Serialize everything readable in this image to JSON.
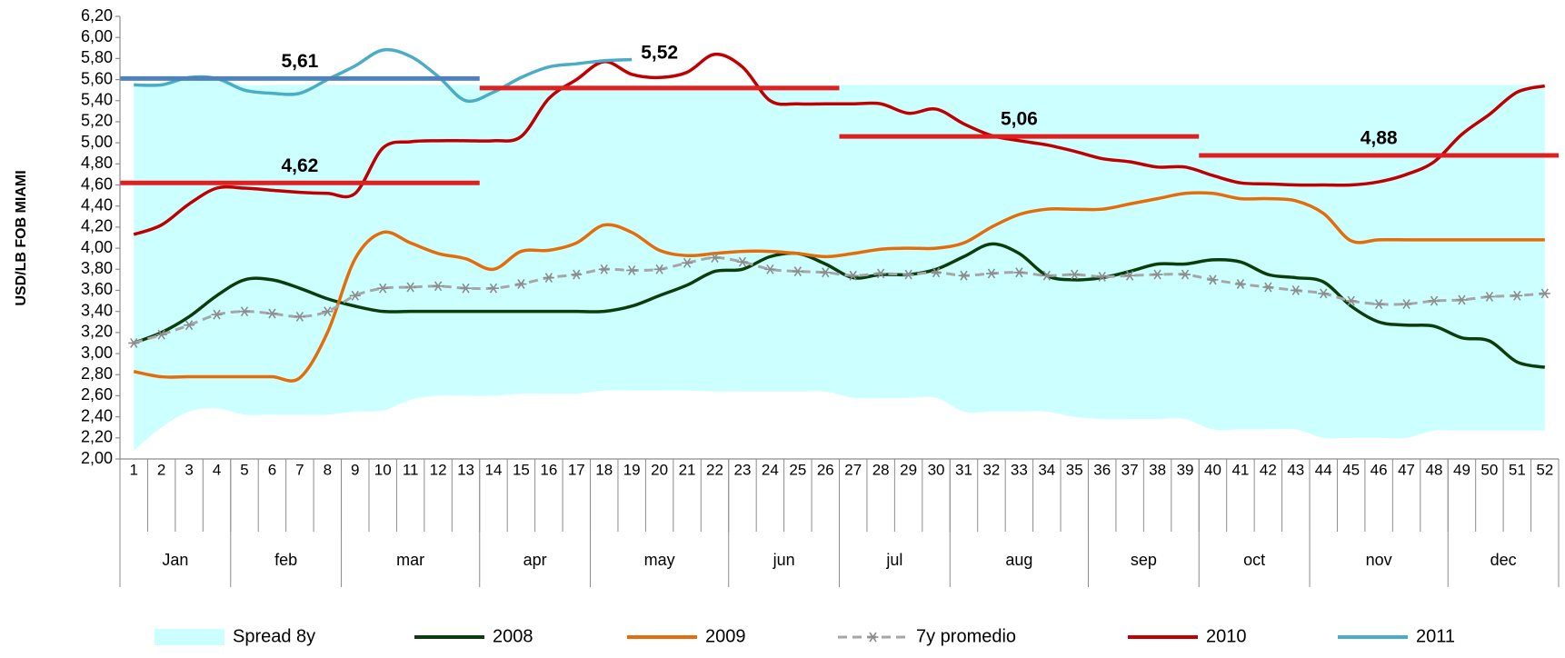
{
  "chart_data": {
    "type": "line",
    "y_axis_label": "USD/LB FOB MIAMI",
    "categories": [
      1,
      2,
      3,
      4,
      5,
      6,
      7,
      8,
      9,
      10,
      11,
      12,
      13,
      14,
      15,
      16,
      17,
      18,
      19,
      20,
      21,
      22,
      23,
      24,
      25,
      26,
      27,
      28,
      29,
      30,
      31,
      32,
      33,
      34,
      35,
      36,
      37,
      38,
      39,
      40,
      41,
      42,
      43,
      44,
      45,
      46,
      47,
      48,
      49,
      50,
      51,
      52
    ],
    "months": [
      {
        "label": "Jan",
        "weeks": [
          1,
          4
        ]
      },
      {
        "label": "feb",
        "weeks": [
          5,
          8
        ]
      },
      {
        "label": "mar",
        "weeks": [
          9,
          13
        ]
      },
      {
        "label": "apr",
        "weeks": [
          14,
          17
        ]
      },
      {
        "label": "may",
        "weeks": [
          18,
          22
        ]
      },
      {
        "label": "jun",
        "weeks": [
          23,
          26
        ]
      },
      {
        "label": "jul",
        "weeks": [
          27,
          30
        ]
      },
      {
        "label": "aug",
        "weeks": [
          31,
          35
        ]
      },
      {
        "label": "sep",
        "weeks": [
          36,
          39
        ]
      },
      {
        "label": "oct",
        "weeks": [
          40,
          43
        ]
      },
      {
        "label": "nov",
        "weeks": [
          44,
          48
        ]
      },
      {
        "label": "dec",
        "weeks": [
          49,
          52
        ]
      }
    ],
    "series": [
      {
        "name": "Spread 8y",
        "style": "range",
        "color": "#ccffff",
        "values": [
          5.55,
          5.55,
          5.6,
          5.6,
          5.55,
          5.55,
          5.55,
          5.55,
          5.55,
          5.55,
          5.55,
          5.55,
          5.55,
          5.55,
          5.55,
          5.55,
          5.55,
          5.55,
          5.55,
          5.55,
          5.55,
          5.55,
          5.55,
          5.55,
          5.55,
          5.55,
          5.55,
          5.55,
          5.55,
          5.55,
          5.55,
          5.55,
          5.55,
          5.55,
          5.55,
          5.55,
          5.55,
          5.55,
          5.55,
          5.55,
          5.55,
          5.55,
          5.55,
          5.55,
          5.55,
          5.55,
          5.55,
          5.55,
          5.55,
          5.55,
          5.55,
          5.55
        ],
        "lower": [
          2.08,
          2.3,
          2.45,
          2.48,
          2.42,
          2.42,
          2.42,
          2.42,
          2.45,
          2.46,
          2.56,
          2.6,
          2.6,
          2.6,
          2.62,
          2.62,
          2.62,
          2.65,
          2.65,
          2.65,
          2.65,
          2.64,
          2.64,
          2.64,
          2.64,
          2.64,
          2.58,
          2.58,
          2.58,
          2.58,
          2.45,
          2.45,
          2.45,
          2.45,
          2.4,
          2.38,
          2.38,
          2.38,
          2.38,
          2.28,
          2.28,
          2.28,
          2.28,
          2.2,
          2.2,
          2.2,
          2.2,
          2.27,
          2.27,
          2.27,
          2.27,
          2.27
        ]
      },
      {
        "name": "2008",
        "style": "line",
        "color": "#0b3d0b",
        "values": [
          3.1,
          3.2,
          3.35,
          3.55,
          3.7,
          3.7,
          3.62,
          3.52,
          3.45,
          3.4,
          3.4,
          3.4,
          3.4,
          3.4,
          3.4,
          3.4,
          3.4,
          3.4,
          3.45,
          3.55,
          3.65,
          3.78,
          3.8,
          3.92,
          3.95,
          3.85,
          3.72,
          3.75,
          3.75,
          3.8,
          3.92,
          4.04,
          3.95,
          3.74,
          3.7,
          3.72,
          3.78,
          3.85,
          3.85,
          3.89,
          3.87,
          3.75,
          3.72,
          3.68,
          3.45,
          3.3,
          3.27,
          3.26,
          3.15,
          3.12,
          2.92,
          2.87
        ]
      },
      {
        "name": "2009",
        "style": "line",
        "color": "#e46c0a",
        "values": [
          2.83,
          2.78,
          2.78,
          2.78,
          2.78,
          2.78,
          2.77,
          3.2,
          3.9,
          4.15,
          4.05,
          3.95,
          3.9,
          3.8,
          3.97,
          3.98,
          4.05,
          4.22,
          4.15,
          3.98,
          3.93,
          3.95,
          3.97,
          3.97,
          3.95,
          3.92,
          3.95,
          3.99,
          4.0,
          4.0,
          4.05,
          4.2,
          4.32,
          4.37,
          4.37,
          4.37,
          4.42,
          4.47,
          4.52,
          4.52,
          4.47,
          4.47,
          4.45,
          4.33,
          4.07,
          4.08,
          4.08,
          4.08,
          4.08,
          4.08,
          4.08,
          4.08
        ]
      },
      {
        "name": "7y promedio",
        "style": "dashed-asterisk",
        "color": "#a6a6a6",
        "values": [
          3.1,
          3.18,
          3.27,
          3.37,
          3.4,
          3.38,
          3.35,
          3.4,
          3.55,
          3.62,
          3.63,
          3.64,
          3.62,
          3.62,
          3.66,
          3.72,
          3.75,
          3.8,
          3.79,
          3.8,
          3.86,
          3.91,
          3.87,
          3.8,
          3.78,
          3.77,
          3.74,
          3.76,
          3.75,
          3.77,
          3.74,
          3.76,
          3.77,
          3.74,
          3.75,
          3.73,
          3.74,
          3.75,
          3.75,
          3.7,
          3.66,
          3.63,
          3.6,
          3.57,
          3.5,
          3.47,
          3.47,
          3.5,
          3.51,
          3.54,
          3.55,
          3.57
        ]
      },
      {
        "name": "2010",
        "style": "line",
        "color": "#c00000",
        "values": [
          4.13,
          4.22,
          4.42,
          4.57,
          4.57,
          4.55,
          4.53,
          4.52,
          4.52,
          4.95,
          5.01,
          5.02,
          5.02,
          5.02,
          5.06,
          5.42,
          5.6,
          5.77,
          5.65,
          5.62,
          5.67,
          5.84,
          5.72,
          5.4,
          5.37,
          5.37,
          5.37,
          5.37,
          5.28,
          5.32,
          5.18,
          5.07,
          5.02,
          4.98,
          4.92,
          4.85,
          4.82,
          4.77,
          4.77,
          4.69,
          4.62,
          4.61,
          4.6,
          4.6,
          4.6,
          4.63,
          4.7,
          4.82,
          5.08,
          5.27,
          5.48,
          5.54
        ]
      },
      {
        "name": "2011",
        "style": "line",
        "color": "#4bacc6",
        "values": [
          5.55,
          5.55,
          5.62,
          5.61,
          5.5,
          5.47,
          5.47,
          5.6,
          5.73,
          5.88,
          5.82,
          5.63,
          5.4,
          5.48,
          5.62,
          5.72,
          5.75,
          5.78,
          5.79,
          null,
          null,
          null,
          null,
          null,
          null,
          null,
          null,
          null,
          null,
          null,
          null,
          null,
          null,
          null,
          null,
          null,
          null,
          null,
          null,
          null,
          null,
          null,
          null,
          null,
          null,
          null,
          null,
          null,
          null,
          null,
          null,
          null
        ]
      }
    ],
    "annotations": [
      {
        "value": 4.62,
        "label": "4,62",
        "x": [
          1,
          13
        ],
        "color": "#e02020"
      },
      {
        "value": 5.61,
        "label": "5,61",
        "x": [
          1,
          13
        ],
        "color": "#4f81bd"
      },
      {
        "value": 5.52,
        "label": "5,52",
        "x": [
          14,
          26
        ],
        "color": "#e02020"
      },
      {
        "value": 5.06,
        "label": "5,06",
        "x": [
          27,
          39
        ],
        "color": "#e02020"
      },
      {
        "value": 4.88,
        "label": "4,88",
        "x": [
          40,
          52
        ],
        "color": "#e02020"
      }
    ],
    "ylim": [
      2,
      6.2
    ],
    "yticks": [
      {
        "value": 2,
        "label": "2,00"
      },
      {
        "value": 2.2,
        "label": "2,20"
      },
      {
        "value": 2.4,
        "label": "2,40"
      },
      {
        "value": 2.6,
        "label": "2,60"
      },
      {
        "value": 2.8,
        "label": "2,80"
      },
      {
        "value": 3,
        "label": "3,00"
      },
      {
        "value": 3.2,
        "label": "3,20"
      },
      {
        "value": 3.4,
        "label": "3,40"
      },
      {
        "value": 3.6,
        "label": "3,60"
      },
      {
        "value": 3.8,
        "label": "3,80"
      },
      {
        "value": 4,
        "label": "4,00"
      },
      {
        "value": 4.2,
        "label": "4,20"
      },
      {
        "value": 4.4,
        "label": "4,40"
      },
      {
        "value": 4.6,
        "label": "4,60"
      },
      {
        "value": 4.8,
        "label": "4,80"
      },
      {
        "value": 5,
        "label": "5,00"
      },
      {
        "value": 5.2,
        "label": "5,20"
      },
      {
        "value": 5.4,
        "label": "5,40"
      },
      {
        "value": 5.6,
        "label": "5,60"
      },
      {
        "value": 5.8,
        "label": "5,80"
      },
      {
        "value": 6,
        "label": "6,00"
      },
      {
        "value": 6.2,
        "label": "6,20"
      }
    ],
    "grid": false
  }
}
